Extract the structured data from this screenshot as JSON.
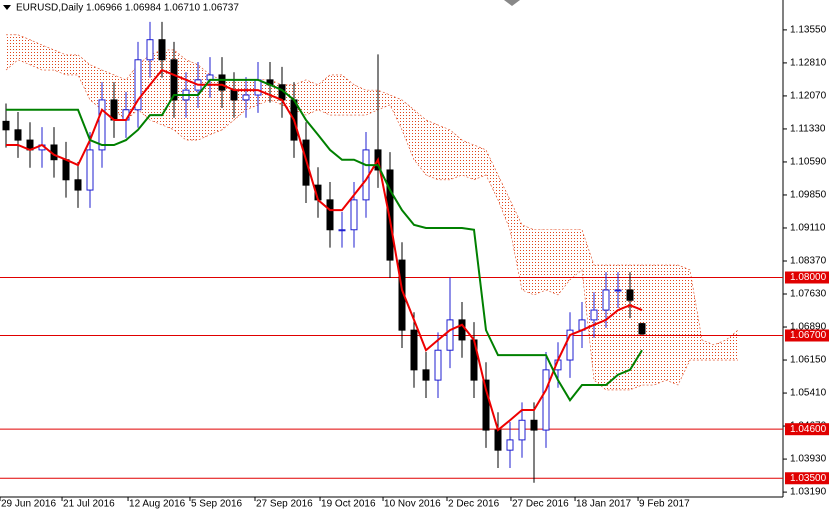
{
  "chart_data": {
    "type": "candlestick",
    "title": "EURUSD,Daily  1.06966 1.06984 1.06710 1.06737",
    "x": [
      0,
      1,
      2,
      3,
      4,
      5,
      6,
      7,
      8,
      9,
      10,
      11,
      12,
      13,
      14,
      15,
      16,
      17,
      18,
      19,
      20,
      21,
      22,
      23,
      24,
      25,
      26,
      27,
      28,
      29,
      30,
      31,
      32,
      33,
      34,
      35,
      36,
      37,
      38,
      39,
      40,
      41,
      42,
      43,
      44,
      45,
      46,
      47,
      48,
      49,
      50,
      51,
      52,
      53
    ],
    "open": [
      1.115,
      1.1131,
      1.1108,
      1.1086,
      1.1097,
      1.1064,
      1.1019,
      1.0996,
      1.1086,
      1.1198,
      1.1153,
      1.1176,
      1.1288,
      1.1333,
      1.1288,
      1.1198,
      1.122,
      1.1243,
      1.1254,
      1.122,
      1.1198,
      1.1209,
      1.1243,
      1.1232,
      1.1198,
      1.1108,
      1.1007,
      1.0974,
      1.0907,
      1.0907,
      1.0974,
      1.1086,
      1.1041,
      1.0839,
      1.0682,
      1.0593,
      1.057,
      1.0637,
      1.0705,
      1.066,
      1.057,
      1.0458,
      1.0413,
      1.0436,
      1.048,
      1.0458,
      1.0593,
      1.0615,
      1.0682,
      1.0705,
      1.0727,
      1.0772,
      1.0772,
      1.06966
    ],
    "high": [
      1.119,
      1.1171,
      1.1148,
      1.1137,
      1.1137,
      1.1104,
      1.1059,
      1.1126,
      1.1238,
      1.1238,
      1.1216,
      1.1328,
      1.1373,
      1.1373,
      1.1328,
      1.126,
      1.1283,
      1.1294,
      1.1294,
      1.126,
      1.1249,
      1.1283,
      1.1283,
      1.1272,
      1.1238,
      1.1148,
      1.1047,
      1.1014,
      1.0947,
      1.1014,
      1.1126,
      1.13,
      1.1081,
      1.0879,
      1.0722,
      1.0633,
      1.0677,
      1.08,
      1.0745,
      1.07,
      1.061,
      1.0498,
      1.0476,
      1.052,
      1.052,
      1.0633,
      1.0655,
      1.0722,
      1.0745,
      1.0767,
      1.0812,
      1.0812,
      1.0812,
      1.06984
    ],
    "low": [
      1.1091,
      1.1068,
      1.1046,
      1.1046,
      1.1024,
      1.0979,
      1.0956,
      1.0956,
      1.1046,
      1.1113,
      1.1113,
      1.1136,
      1.1248,
      1.1248,
      1.1158,
      1.1158,
      1.118,
      1.1203,
      1.118,
      1.1158,
      1.1158,
      1.1169,
      1.1192,
      1.1158,
      1.1068,
      1.0967,
      1.0934,
      1.0867,
      1.0867,
      1.0867,
      1.0934,
      1.1001,
      1.0799,
      1.0642,
      1.0553,
      1.053,
      1.053,
      1.0597,
      1.062,
      1.053,
      1.0418,
      1.0373,
      1.0373,
      1.0396,
      1.034,
      1.0418,
      1.0553,
      1.0575,
      1.0642,
      1.0665,
      1.0687,
      1.0732,
      1.0709,
      1.0671
    ],
    "close": [
      1.1131,
      1.1108,
      1.1086,
      1.1097,
      1.1064,
      1.1019,
      1.0996,
      1.1086,
      1.1198,
      1.1153,
      1.1176,
      1.1288,
      1.1333,
      1.1288,
      1.1198,
      1.122,
      1.1243,
      1.1254,
      1.122,
      1.1198,
      1.1209,
      1.1243,
      1.1232,
      1.1198,
      1.1108,
      1.1007,
      1.0974,
      1.0907,
      1.0907,
      1.0974,
      1.1086,
      1.1041,
      1.0839,
      1.0682,
      1.0593,
      1.057,
      1.0637,
      1.0705,
      1.066,
      1.057,
      1.0458,
      1.0413,
      1.0436,
      1.048,
      1.0458,
      1.0593,
      1.0615,
      1.0682,
      1.0705,
      1.0727,
      1.0772,
      1.0772,
      1.0749,
      1.06737
    ],
    "up_color": "#1f1fd0",
    "down_color": "#000000",
    "lines": [
      {
        "color": "#ee0000",
        "values": [
          1.1097,
          1.1097,
          1.1086,
          1.1097,
          1.1075,
          1.1064,
          1.1052,
          1.1108,
          1.1176,
          1.1153,
          1.1153,
          1.1198,
          1.1232,
          1.1265,
          1.1254,
          1.1243,
          1.1232,
          1.1232,
          1.1232,
          1.122,
          1.122,
          1.122,
          1.1209,
          1.1198,
          1.1153,
          1.1064,
          1.0974,
          1.0951,
          1.0951,
          1.0985,
          1.1019,
          1.1064,
          1.0929,
          1.0772,
          1.0705,
          1.0637,
          1.066,
          1.0682,
          1.0694,
          1.066,
          1.0548,
          1.0458,
          1.048,
          1.0503,
          1.0503,
          1.0548,
          1.0615,
          1.0671,
          1.0682,
          1.0694,
          1.0705,
          1.0727,
          1.0738,
          1.0727
        ]
      },
      {
        "color": "#008000",
        "values": [
          1.1176,
          1.1176,
          1.1176,
          1.1176,
          1.1176,
          1.1176,
          1.1176,
          1.1108,
          1.1097,
          1.1097,
          1.1108,
          1.1131,
          1.1164,
          1.1164,
          1.1209,
          1.1209,
          1.1209,
          1.1243,
          1.1243,
          1.1243,
          1.1243,
          1.1243,
          1.1232,
          1.122,
          1.1198,
          1.1153,
          1.112,
          1.1086,
          1.1064,
          1.1064,
          1.1052,
          1.1052,
          1.0996,
          1.0951,
          1.0918,
          1.0911,
          1.0911,
          1.0911,
          1.0911,
          1.0907,
          1.0682,
          1.0626,
          1.0626,
          1.0626,
          1.0626,
          1.0626,
          1.057,
          1.0525,
          1.0559,
          1.0559,
          1.0559,
          1.0582,
          1.0593,
          1.0637
        ]
      }
    ],
    "cloud": {
      "color": "#e0451a",
      "x": [
        0,
        1,
        2,
        3,
        4,
        5,
        6,
        7,
        8,
        9,
        10,
        11,
        12,
        13,
        14,
        15,
        16,
        17,
        18,
        19,
        20,
        21,
        22,
        23,
        24,
        25,
        26,
        27,
        28,
        29,
        30,
        31,
        32,
        33,
        34,
        35,
        36,
        37,
        38,
        39,
        40,
        41,
        42,
        43,
        44,
        45,
        46,
        47,
        48,
        49,
        50,
        51,
        52,
        53,
        54,
        55,
        56,
        57,
        58,
        59,
        60,
        61
      ],
      "upper": [
        1.1344,
        1.1344,
        1.1333,
        1.1321,
        1.131,
        1.1299,
        1.1299,
        1.1277,
        1.1265,
        1.1254,
        1.1243,
        1.1277,
        1.1299,
        1.131,
        1.131,
        1.1288,
        1.1277,
        1.1254,
        1.1243,
        1.1243,
        1.1243,
        1.1243,
        1.1243,
        1.1232,
        1.1232,
        1.1243,
        1.1232,
        1.1254,
        1.1254,
        1.1232,
        1.122,
        1.122,
        1.1209,
        1.1198,
        1.1176,
        1.1153,
        1.1142,
        1.1131,
        1.1108,
        1.1097,
        1.1086,
        1.103,
        1.0974,
        1.0918,
        1.0907,
        1.0907,
        1.0907,
        1.0907,
        1.0907,
        1.0828,
        1.0828,
        1.0828,
        1.0828,
        1.0828,
        1.0828,
        1.0828,
        1.0828,
        1.0817,
        1.066,
        1.0649,
        1.066,
        1.0682
      ],
      "lower": [
        1.1265,
        1.1288,
        1.1277,
        1.1265,
        1.1265,
        1.1254,
        1.1254,
        1.1198,
        1.1176,
        1.1176,
        1.1153,
        1.1176,
        1.1153,
        1.1142,
        1.1131,
        1.1108,
        1.1108,
        1.112,
        1.1131,
        1.1153,
        1.1176,
        1.1187,
        1.1198,
        1.1187,
        1.1176,
        1.1164,
        1.1176,
        1.1164,
        1.1164,
        1.1164,
        1.1164,
        1.1176,
        1.1187,
        1.1131,
        1.1064,
        1.103,
        1.1019,
        1.1019,
        1.103,
        1.1019,
        1.103,
        1.0974,
        1.0907,
        1.0772,
        1.0761,
        1.0772,
        1.0761,
        1.0795,
        1.0817,
        1.057,
        1.0548,
        1.0548,
        1.0548,
        1.0559,
        1.0559,
        1.057,
        1.0559,
        1.0615,
        1.0615,
        1.0615,
        1.0615,
        1.0615
      ]
    },
    "level_color": "#e00000",
    "levels": [
      {
        "value": 1.08,
        "label": "1.08000"
      },
      {
        "value": 1.067,
        "label": "1.06700"
      },
      {
        "value": 1.046,
        "label": "1.04600"
      },
      {
        "value": 1.035,
        "label": "1.03500"
      }
    ],
    "xlim": [
      -0.5,
      64.75
    ],
    "ylim": [
      1.0308,
      1.1422
    ],
    "xticks": [
      {
        "value": -0.5,
        "label": "29 Jun 2016"
      },
      {
        "value": 4.67,
        "label": "21 Jul 2016"
      },
      {
        "value": 10.17,
        "label": "12 Aug 2016"
      },
      {
        "value": 15.33,
        "label": "5 Sep 2016"
      },
      {
        "value": 20.75,
        "label": "27 Sep 2016"
      },
      {
        "value": 26.17,
        "label": "19 Oct 2016"
      },
      {
        "value": 31.42,
        "label": "10 Nov 2016"
      },
      {
        "value": 36.75,
        "label": "2 Dec 2016"
      },
      {
        "value": 42.08,
        "label": "27 Dec 2016"
      },
      {
        "value": 47.42,
        "label": "18 Jan 2017"
      },
      {
        "value": 52.67,
        "label": "9 Feb 2017"
      }
    ],
    "yticks": [
      {
        "value": 1.1355,
        "label": "1.13550"
      },
      {
        "value": 1.1281,
        "label": "1.12810"
      },
      {
        "value": 1.1207,
        "label": "1.12070"
      },
      {
        "value": 1.1133,
        "label": "1.11330"
      },
      {
        "value": 1.1059,
        "label": "1.10590"
      },
      {
        "value": 1.0985,
        "label": "1.09850"
      },
      {
        "value": 1.0911,
        "label": "1.09110"
      },
      {
        "value": 1.0837,
        "label": "1.08370"
      },
      {
        "value": 1.0763,
        "label": "1.07630"
      },
      {
        "value": 1.0689,
        "label": "1.06890"
      },
      {
        "value": 1.0615,
        "label": "1.06150"
      },
      {
        "value": 1.0541,
        "label": "1.05410"
      },
      {
        "value": 1.0467,
        "label": "1.04670"
      },
      {
        "value": 1.0393,
        "label": "1.03930"
      },
      {
        "value": 1.0319,
        "label": "1.03190"
      }
    ]
  }
}
